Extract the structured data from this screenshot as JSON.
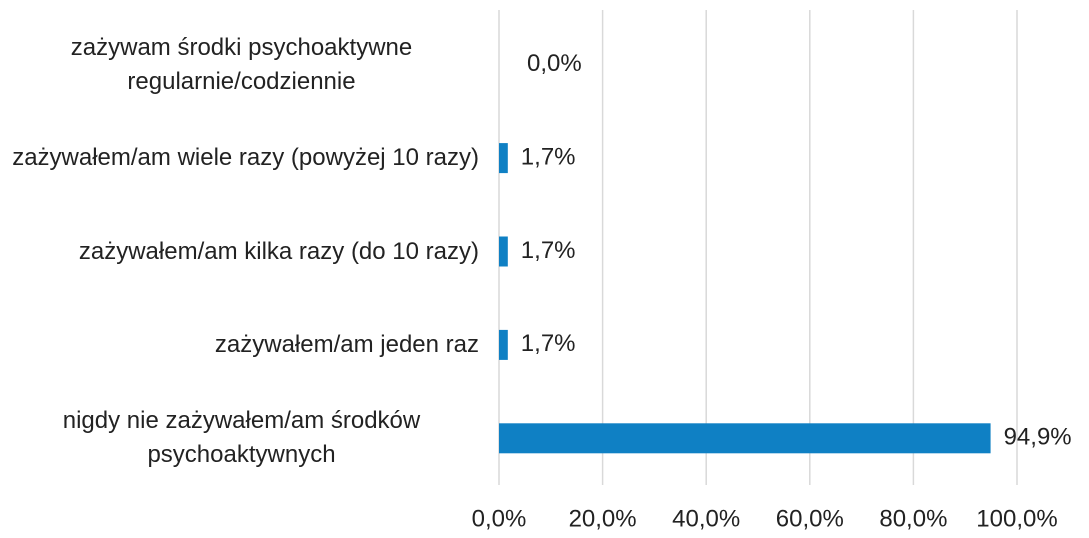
{
  "chart_data": {
    "type": "bar",
    "orientation": "horizontal",
    "categories": [
      "zażywam środki psychoaktywne regularnie/codziennie",
      "zażywałem/am wiele razy (powyżej 10 razy)",
      "zażywałem/am kilka razy (do 10 razy)",
      "zażywałem/am jeden raz",
      "nigdy nie zażywałem/am środków psychoaktywnych"
    ],
    "values": [
      0,
      1.7,
      1.7,
      1.7,
      94.9
    ],
    "value_labels": [
      "0,0%",
      "1,7%",
      "1,7%",
      "1,7%",
      "94,9%"
    ],
    "color": "#0f80c4",
    "xlim": [
      0,
      100
    ],
    "xticks": [
      {
        "value": 0,
        "label": "0,0%"
      },
      {
        "value": 20,
        "label": "20,0%"
      },
      {
        "value": 40,
        "label": "40,0%"
      },
      {
        "value": 60,
        "label": "60,0%"
      },
      {
        "value": 80,
        "label": "80,0%"
      },
      {
        "value": 100,
        "label": "100,0%"
      }
    ],
    "grid": true
  }
}
